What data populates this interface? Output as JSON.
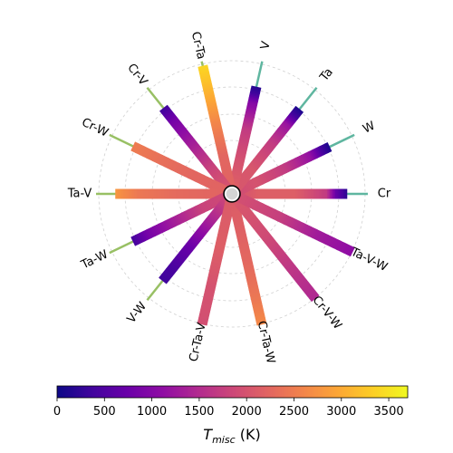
{
  "chart_data": {
    "type": "radial-bar",
    "center_point": "",
    "spokes": [
      {
        "label": "Cr",
        "group": "binary",
        "length": 0.86,
        "profile": [
          [
            0,
            1900
          ],
          [
            0.22,
            2150
          ],
          [
            0.55,
            2150
          ],
          [
            0.82,
            1700
          ],
          [
            0.9,
            700
          ],
          [
            1,
            200
          ]
        ]
      },
      {
        "label": "W",
        "group": "binary",
        "length": 0.81,
        "profile": [
          [
            0,
            1900
          ],
          [
            0.25,
            2000
          ],
          [
            0.55,
            1700
          ],
          [
            0.8,
            1150
          ],
          [
            0.92,
            400
          ],
          [
            1,
            100
          ]
        ]
      },
      {
        "label": "Ta",
        "group": "binary",
        "length": 0.81,
        "profile": [
          [
            0,
            2050
          ],
          [
            0.3,
            2050
          ],
          [
            0.6,
            1700
          ],
          [
            0.82,
            1200
          ],
          [
            0.92,
            400
          ],
          [
            1,
            100
          ]
        ]
      },
      {
        "label": "V",
        "group": "binary",
        "length": 0.82,
        "profile": [
          [
            0,
            2200
          ],
          [
            0.3,
            2000
          ],
          [
            0.6,
            1700
          ],
          [
            0.85,
            1000
          ],
          [
            0.93,
            400
          ],
          [
            1,
            150
          ]
        ]
      },
      {
        "label": "Cr-Ta",
        "group": "ternary",
        "length": 0.98,
        "profile": [
          [
            0,
            2200
          ],
          [
            0.3,
            2250
          ],
          [
            0.55,
            2600
          ],
          [
            0.75,
            3000
          ],
          [
            0.9,
            3250
          ],
          [
            1,
            3400
          ]
        ]
      },
      {
        "label": "Cr-V",
        "group": "ternary",
        "length": 0.82,
        "profile": [
          [
            0,
            2100
          ],
          [
            0.3,
            1800
          ],
          [
            0.6,
            1300
          ],
          [
            0.85,
            850
          ],
          [
            1,
            350
          ]
        ]
      },
      {
        "label": "Cr-W",
        "group": "ternary",
        "length": 0.82,
        "profile": [
          [
            0,
            2200
          ],
          [
            0.4,
            2250
          ],
          [
            0.7,
            2350
          ],
          [
            0.9,
            2450
          ],
          [
            1,
            2500
          ]
        ]
      },
      {
        "label": "Ta-V",
        "group": "ternary",
        "length": 0.87,
        "profile": [
          [
            0,
            2200
          ],
          [
            0.5,
            2300
          ],
          [
            0.8,
            2450
          ],
          [
            0.93,
            2650
          ],
          [
            1,
            2800
          ]
        ]
      },
      {
        "label": "Ta-W",
        "group": "ternary",
        "length": 0.82,
        "profile": [
          [
            0,
            1900
          ],
          [
            0.3,
            1800
          ],
          [
            0.6,
            1300
          ],
          [
            0.85,
            850
          ],
          [
            1,
            400
          ]
        ]
      },
      {
        "label": "V-W",
        "group": "ternary",
        "length": 0.83,
        "profile": [
          [
            0,
            2000
          ],
          [
            0.35,
            1300
          ],
          [
            0.6,
            750
          ],
          [
            0.85,
            450
          ],
          [
            1,
            350
          ]
        ]
      },
      {
        "label": "Cr-Ta-V",
        "group": "quaternary",
        "length": 1.0,
        "profile": [
          [
            0,
            2100
          ],
          [
            0.4,
            2150
          ],
          [
            0.7,
            2000
          ],
          [
            1,
            1950
          ]
        ]
      },
      {
        "label": "Cr-Ta-W",
        "group": "quaternary",
        "length": 1.0,
        "profile": [
          [
            0,
            2100
          ],
          [
            0.5,
            2250
          ],
          [
            0.8,
            2450
          ],
          [
            1,
            2650
          ]
        ]
      },
      {
        "label": "Cr-V-W",
        "group": "quaternary",
        "length": 1.0,
        "profile": [
          [
            0,
            2100
          ],
          [
            0.4,
            1900
          ],
          [
            0.7,
            1650
          ],
          [
            1,
            1450
          ]
        ]
      },
      {
        "label": "Ta-V-W",
        "group": "quaternary",
        "length": 1.0,
        "profile": [
          [
            0,
            2000
          ],
          [
            0.4,
            1750
          ],
          [
            0.7,
            1300
          ],
          [
            1,
            1100
          ]
        ]
      }
    ],
    "group_line_colors": {
      "binary": "#5fb6a0",
      "ternary": "#98c064",
      "quaternary": "#ffffff"
    },
    "colormap": "plasma",
    "colorbar": {
      "label_main": "T",
      "label_sub": "misc",
      "label_unit": " (K)",
      "min": 0,
      "max": 3700,
      "ticks": [
        0,
        500,
        1000,
        1500,
        2000,
        2500,
        3000,
        3500
      ]
    },
    "grid": true
  }
}
